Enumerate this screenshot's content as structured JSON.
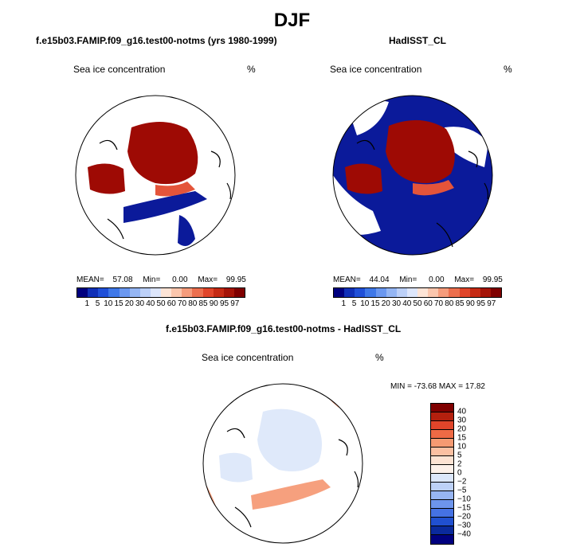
{
  "title": "DJF",
  "chart_data": [
    {
      "type": "polar-map",
      "subtitle": "f.e15b03.FAMIP.f09_g16.test00-notms (yrs 1980-1999)",
      "variable": "Sea ice concentration",
      "units": "%",
      "stats": {
        "mean_label": "MEAN=",
        "mean": "57.08",
        "min_label": "Min=",
        "min": "0.00",
        "max_label": "Max=",
        "max": "99.95"
      },
      "colorbar_levels": [
        "1",
        "5",
        "10",
        "15",
        "20",
        "30",
        "40",
        "50",
        "60",
        "70",
        "80",
        "85",
        "90",
        "95",
        "97"
      ]
    },
    {
      "type": "polar-map",
      "subtitle": "HadISST_CL",
      "variable": "Sea ice concentration",
      "units": "%",
      "stats": {
        "mean_label": "MEAN=",
        "mean": "44.04",
        "min_label": "Min=",
        "min": "0.00",
        "max_label": "Max=",
        "max": "99.95"
      },
      "colorbar_levels": [
        "1",
        "5",
        "10",
        "15",
        "20",
        "30",
        "40",
        "50",
        "60",
        "70",
        "80",
        "85",
        "90",
        "95",
        "97"
      ]
    },
    {
      "type": "polar-map-difference",
      "subtitle": "f.e15b03.FAMIP.f09_g16.test00-notms - HadISST_CL",
      "variable": "Sea ice concentration",
      "units": "%",
      "minmax": "MIN = -73.68 MAX =  17.82",
      "colorbar_levels": [
        "40",
        "30",
        "20",
        "15",
        "10",
        "5",
        "2",
        "0",
        "−2",
        "−5",
        "−10",
        "−15",
        "−20",
        "−30",
        "−40"
      ]
    }
  ],
  "colors": {
    "seq": [
      "#00007f",
      "#1030b8",
      "#2050d8",
      "#3f78e8",
      "#6b98f0",
      "#95b6f4",
      "#bcd0f8",
      "#dde6fb",
      "#fde4d6",
      "#fbc6ad",
      "#f59c7c",
      "#ec6f4e",
      "#e0452a",
      "#c52a14",
      "#a51408",
      "#7f0000"
    ],
    "div": [
      "#7f0000",
      "#b4200e",
      "#e0452a",
      "#ef6a45",
      "#f59a72",
      "#fbc0a2",
      "#fde3d3",
      "#fdf1ea",
      "#dce7fb",
      "#bdd1f7",
      "#97b5f2",
      "#6d95ec",
      "#4572e4",
      "#2050d0",
      "#0a2a9c",
      "#00007f"
    ],
    "ice": "#9e0a04",
    "open": "#0b1a9a",
    "ocean_lite": "#dfe9fa",
    "pos": "#f6a07e"
  }
}
